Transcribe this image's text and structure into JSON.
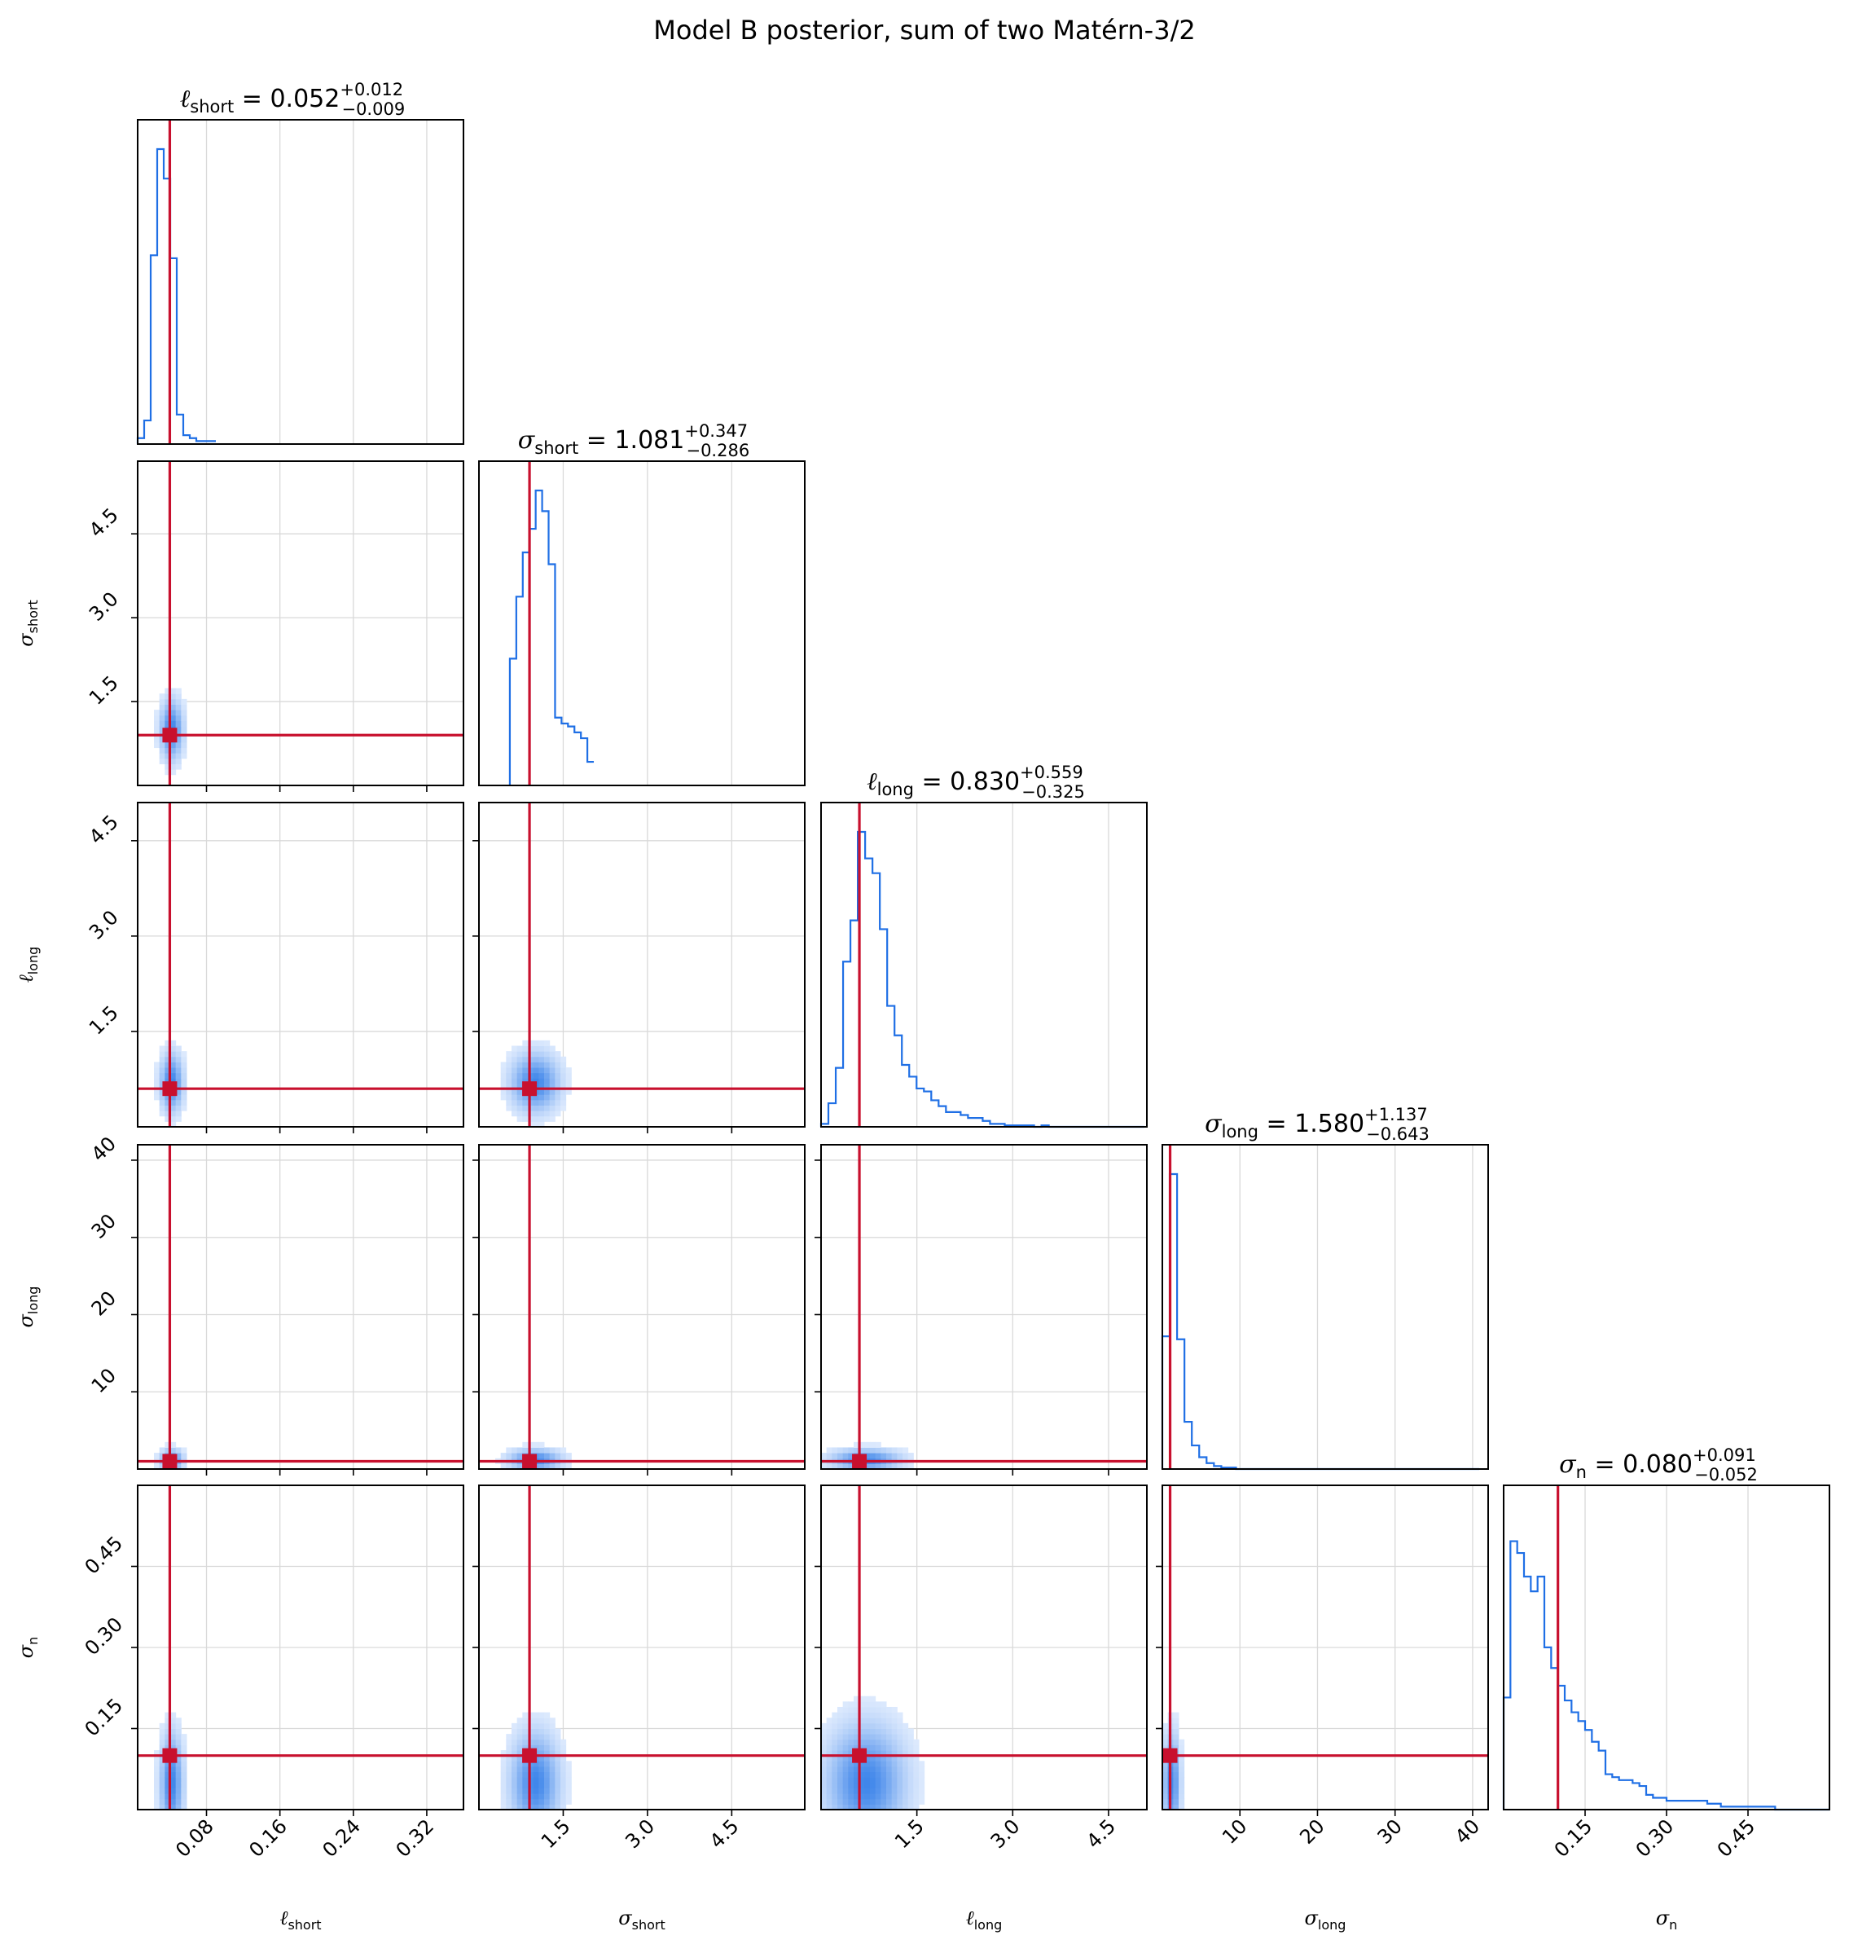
{
  "title": "Model B posterior, sum of two Matérn-3/2",
  "colors": {
    "histogram": "#1f6fe5",
    "truth": "#c8102e",
    "density_low": "#eaf2ff",
    "density_high": "#3f86ea",
    "grid": "#d9d9d9"
  },
  "chart_data": {
    "type": "corner",
    "params": [
      {
        "sym": "ℓ",
        "sub": "short",
        "median": "0.052",
        "plus": "+0.012",
        "minus": "−0.009",
        "range": [
          0.005,
          0.36
        ],
        "ticks": [
          0.08,
          0.16,
          0.24,
          0.32
        ],
        "tick_labels": [
          "0.08",
          "0.16",
          "0.24",
          "0.32"
        ],
        "truth": 0.04,
        "hist": {
          "edges_start": 0.005,
          "bin": 0.0071,
          "values": [
            0.02,
            0.08,
            0.64,
            1.0,
            0.9,
            0.63,
            0.1,
            0.03,
            0.02,
            0.01,
            0.01,
            0.01
          ]
        }
      },
      {
        "sym": "σ",
        "sub": "short",
        "median": "1.081",
        "plus": "+0.347",
        "minus": "−0.286",
        "range": [
          0.0,
          5.8
        ],
        "ticks": [
          1.5,
          3.0,
          4.5
        ],
        "tick_labels": [
          "1.5",
          "3.0",
          "4.5"
        ],
        "truth": 0.9,
        "hist": {
          "edges_start": 0.55,
          "bin": 0.115,
          "values": [
            0.43,
            0.64,
            0.79,
            0.87,
            1.0,
            0.93,
            0.75,
            0.23,
            0.21,
            0.2,
            0.18,
            0.16,
            0.08
          ]
        }
      },
      {
        "sym": "ℓ",
        "sub": "long",
        "median": "0.830",
        "plus": "+0.559",
        "minus": "−0.325",
        "range": [
          0.0,
          5.1
        ],
        "ticks": [
          1.5,
          3.0,
          4.5
        ],
        "tick_labels": [
          "1.5",
          "3.0",
          "4.5"
        ],
        "truth": 0.6,
        "hist": {
          "edges_start": 0.0,
          "bin": 0.115,
          "values": [
            0.01,
            0.08,
            0.2,
            0.56,
            0.7,
            1.0,
            0.91,
            0.86,
            0.67,
            0.41,
            0.31,
            0.21,
            0.17,
            0.13,
            0.12,
            0.09,
            0.07,
            0.05,
            0.05,
            0.04,
            0.03,
            0.03,
            0.02,
            0.01,
            0.01,
            0.005,
            0.005,
            0.005,
            0.005,
            0.0,
            0.005,
            0.0,
            0.0,
            0.0,
            0.0,
            0.0,
            0.0,
            0.0,
            0.0,
            0.0,
            0.0,
            0.0,
            0.0,
            0.0
          ]
        }
      },
      {
        "sym": "σ",
        "sub": "long",
        "median": "1.580",
        "plus": "+1.137",
        "minus": "−0.643",
        "range": [
          0.0,
          42.0
        ],
        "ticks": [
          10,
          20,
          30,
          40
        ],
        "tick_labels": [
          "10",
          "20",
          "30",
          "40"
        ],
        "truth": 1.0,
        "hist": {
          "edges_start": 0.0,
          "bin": 0.95,
          "values": [
            0.45,
            1.0,
            0.44,
            0.16,
            0.08,
            0.04,
            0.02,
            0.01,
            0.005,
            0.005,
            0.0,
            0.0,
            0.0,
            0.0,
            0.0,
            0.0,
            0.0,
            0.0,
            0.0,
            0.0,
            0.0,
            0.0,
            0.0,
            0.0,
            0.0,
            0.0,
            0.0,
            0.0,
            0.0,
            0.0,
            0.0,
            0.0,
            0.0,
            0.0,
            0.0,
            0.0,
            0.0,
            0.0,
            0.0,
            0.0,
            0.0,
            0.0,
            0.0
          ]
        }
      },
      {
        "sym": "σ",
        "sub": "n",
        "median": "0.080",
        "plus": "+0.091",
        "minus": "−0.052",
        "range": [
          0.0,
          0.6
        ],
        "ticks": [
          0.15,
          0.3,
          0.45
        ],
        "tick_labels": [
          "0.15",
          "0.30",
          "0.45"
        ],
        "truth": 0.1,
        "hist": {
          "edges_start": 0.0,
          "bin": 0.0125,
          "values": [
            0.38,
            0.91,
            0.87,
            0.79,
            0.74,
            0.79,
            0.55,
            0.48,
            0.42,
            0.37,
            0.33,
            0.3,
            0.27,
            0.23,
            0.2,
            0.12,
            0.11,
            0.1,
            0.1,
            0.09,
            0.08,
            0.05,
            0.04,
            0.04,
            0.03,
            0.03,
            0.03,
            0.03,
            0.03,
            0.03,
            0.02,
            0.02,
            0.01,
            0.01,
            0.01,
            0.01,
            0.01,
            0.01,
            0.01,
            0.01,
            0.0,
            0.0,
            0.0,
            0.0,
            0.0,
            0.0,
            0.0,
            0.0
          ]
        }
      }
    ],
    "pairs": [
      {
        "row": 1,
        "col": 0,
        "peak": [
          0.042,
          1.0
        ],
        "spread": [
          0.008,
          0.35
        ]
      },
      {
        "row": 2,
        "col": 0,
        "peak": [
          0.042,
          0.7
        ],
        "spread": [
          0.008,
          0.3
        ]
      },
      {
        "row": 2,
        "col": 1,
        "peak": [
          1.0,
          0.7
        ],
        "spread": [
          0.28,
          0.3
        ]
      },
      {
        "row": 3,
        "col": 0,
        "peak": [
          0.042,
          1.2
        ],
        "spread": [
          0.008,
          0.9
        ]
      },
      {
        "row": 3,
        "col": 1,
        "peak": [
          1.0,
          1.2
        ],
        "spread": [
          0.3,
          0.9
        ]
      },
      {
        "row": 3,
        "col": 2,
        "peak": [
          0.7,
          1.2
        ],
        "spread": [
          0.35,
          0.9
        ]
      },
      {
        "row": 4,
        "col": 0,
        "peak": [
          0.042,
          0.05
        ],
        "spread": [
          0.008,
          0.06
        ]
      },
      {
        "row": 4,
        "col": 1,
        "peak": [
          1.0,
          0.05
        ],
        "spread": [
          0.28,
          0.06
        ]
      },
      {
        "row": 4,
        "col": 2,
        "peak": [
          0.7,
          0.05
        ],
        "spread": [
          0.4,
          0.07
        ]
      },
      {
        "row": 4,
        "col": 3,
        "peak": [
          1.2,
          0.05
        ],
        "spread": [
          0.7,
          0.06
        ]
      }
    ]
  }
}
